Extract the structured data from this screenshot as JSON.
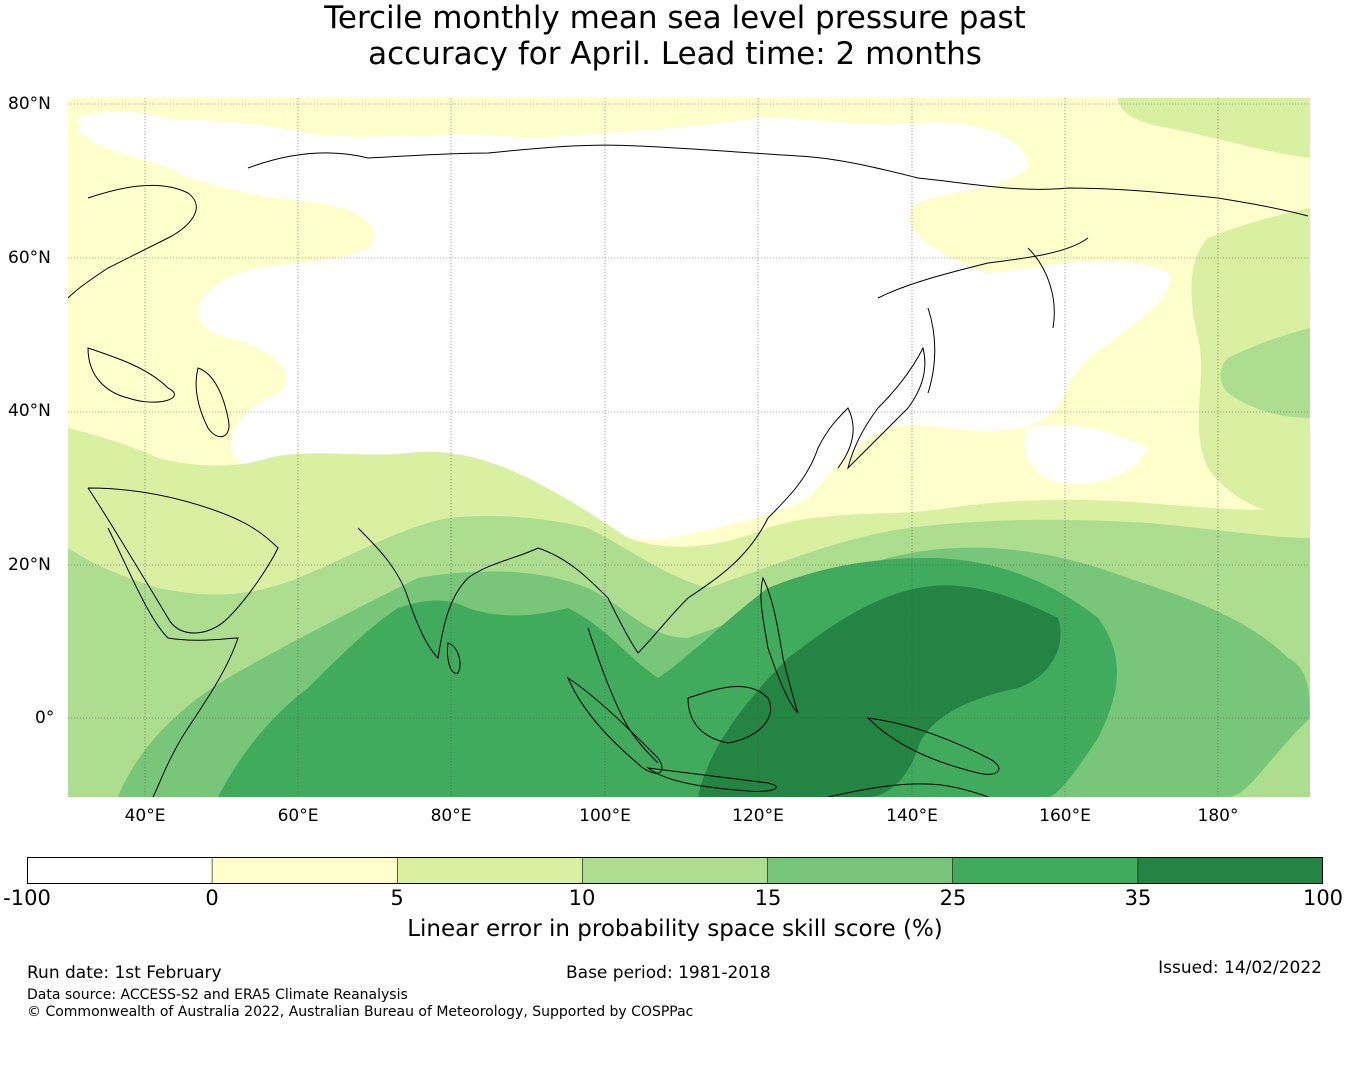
{
  "title_line1": "Tercile monthly mean sea level pressure past",
  "title_line2": "accuracy for April. Lead time: 2 months",
  "map": {
    "lat_labels": [
      "80°N",
      "60°N",
      "40°N",
      "20°N",
      "0°"
    ],
    "lon_labels": [
      "40°E",
      "60°E",
      "80°E",
      "100°E",
      "120°E",
      "140°E",
      "160°E",
      "180°"
    ],
    "colors": {
      "band_neg": "#ffffff",
      "band_0_5": "#ffffcc",
      "band_5_10": "#d9f0a3",
      "band_10_15": "#addd8e",
      "band_15_25": "#78c679",
      "band_25_35": "#41ab5d",
      "band_35_100": "#238443",
      "coast": "#000000"
    }
  },
  "colorbar": {
    "tick_labels": [
      "-100",
      "0",
      "5",
      "10",
      "15",
      "25",
      "35",
      "100"
    ],
    "colors": [
      "#ffffff",
      "#ffffcc",
      "#d9f0a3",
      "#addd8e",
      "#78c679",
      "#41ab5d",
      "#238443"
    ],
    "label": "Linear error in probability space skill score (%)"
  },
  "footer": {
    "run_date": "Run date: 1st February",
    "base_period": "Base period: 1981-2018",
    "issued": "Issued: 14/02/2022",
    "data_source": "Data source: ACCESS-S2 and ERA5 Climate Reanalysis",
    "copyright": "© Commonwealth of Australia 2022, Australian Bureau of Meteorology, Supported by COSPPac"
  }
}
